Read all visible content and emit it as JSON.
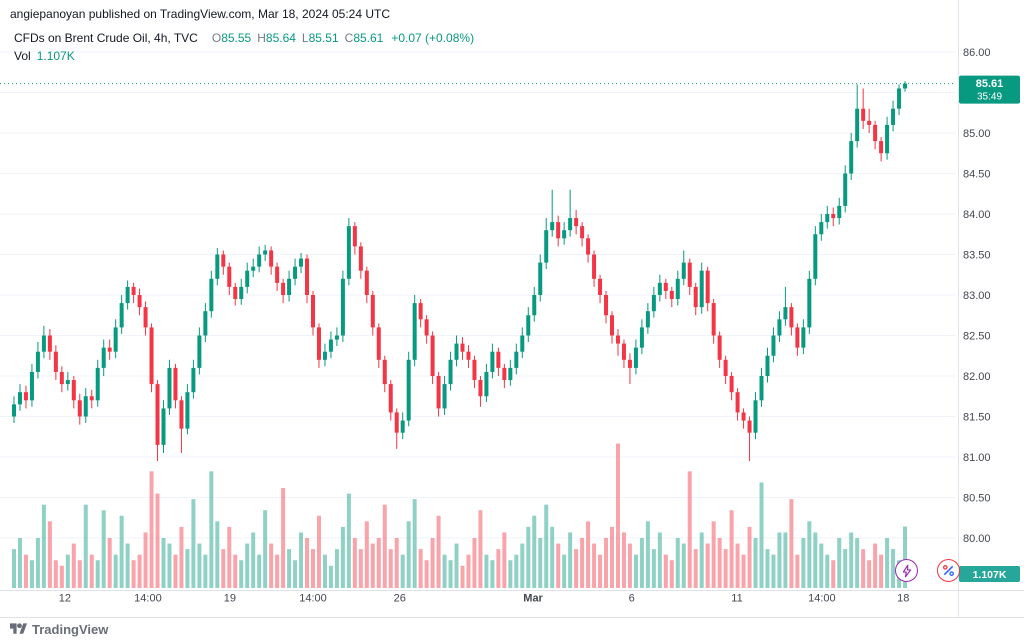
{
  "attribution": "angiepanoyan published on TradingView.com, Mar 18, 2024 05:24 UTC",
  "legend": {
    "title": "CFDs on Brent Crude Oil, 4h, TVC",
    "o_label": "O",
    "o_value": "85.55",
    "h_label": "H",
    "h_value": "85.64",
    "l_label": "L",
    "l_value": "85.51",
    "c_label": "C",
    "c_value": "85.61",
    "change": "+0.07 (+0.08%)",
    "vol_label": "Vol",
    "vol_value": "1.107K"
  },
  "price_axis": {
    "ticks": [
      86.0,
      85.5,
      85.0,
      84.5,
      84.0,
      83.5,
      83.0,
      82.5,
      82.0,
      81.5,
      81.0,
      80.5,
      80.0
    ],
    "current_price": "85.61",
    "countdown": "35:49",
    "volume_badge": "1.107K"
  },
  "time_axis": {
    "labels": [
      {
        "label": "12",
        "i": 8.5
      },
      {
        "label": "14:00",
        "i": 22.4
      },
      {
        "label": "19",
        "i": 36.1
      },
      {
        "label": "14:00",
        "i": 50.0
      },
      {
        "label": "26",
        "i": 64.5
      },
      {
        "label": "Mar",
        "i": 86.8,
        "bold": true
      },
      {
        "label": "6",
        "i": 103.3
      },
      {
        "label": "11",
        "i": 120.9
      },
      {
        "label": "14:00",
        "i": 135.1
      },
      {
        "label": "18",
        "i": 148.7
      }
    ]
  },
  "footer": {
    "brand": "TradingView"
  },
  "colors": {
    "up": "#089981",
    "down": "#f23645",
    "vol_up": "rgba(8,153,129,0.45)",
    "vol_down": "rgba(242,54,69,0.45)",
    "axis_text": "#434651",
    "grid": "#f0f3fa",
    "separator": "#e0e3eb",
    "badge_price_bg": "#089981",
    "badge_vol_bg": "#27a69a",
    "boost_icon": "#9c27b0",
    "reaction_ring": "#f23645",
    "reaction_glyph": "#2962ff"
  },
  "chart_data": {
    "type": "candlestick",
    "title": "CFDs on Brent Crude Oil",
    "interval": "4h",
    "exchange": "TVC",
    "last": {
      "open": 85.55,
      "high": 85.64,
      "low": 85.51,
      "close": 85.61,
      "change": "+0.07 (+0.08%)",
      "volume": "1.107K"
    },
    "ylim": [
      79.85,
      86.35
    ],
    "y_ticks_step": 0.5,
    "x_visible_labels": [
      "12",
      "14:00",
      "19",
      "14:00",
      "26",
      "Mar",
      "6",
      "11",
      "14:00",
      "18"
    ],
    "volume_unit": "K",
    "ohlc": [
      [
        81.5,
        81.75,
        81.42,
        81.65
      ],
      [
        81.65,
        81.9,
        81.57,
        81.8
      ],
      [
        81.8,
        81.88,
        81.6,
        81.7
      ],
      [
        81.7,
        82.15,
        81.62,
        82.05
      ],
      [
        82.05,
        82.42,
        81.97,
        82.3
      ],
      [
        82.3,
        82.62,
        82.22,
        82.5
      ],
      [
        82.5,
        82.58,
        82.2,
        82.3
      ],
      [
        82.3,
        82.38,
        81.95,
        82.05
      ],
      [
        82.05,
        82.12,
        81.8,
        81.9
      ],
      [
        81.9,
        82.05,
        81.82,
        81.95
      ],
      [
        81.95,
        82.0,
        81.6,
        81.7
      ],
      [
        81.7,
        81.78,
        81.4,
        81.5
      ],
      [
        81.5,
        81.85,
        81.42,
        81.75
      ],
      [
        81.75,
        81.83,
        81.6,
        81.7
      ],
      [
        81.7,
        82.2,
        81.62,
        82.1
      ],
      [
        82.1,
        82.45,
        82.0,
        82.35
      ],
      [
        82.35,
        82.45,
        82.2,
        82.3
      ],
      [
        82.3,
        82.7,
        82.22,
        82.6
      ],
      [
        82.6,
        83.0,
        82.52,
        82.9
      ],
      [
        82.9,
        83.18,
        82.82,
        83.1
      ],
      [
        83.1,
        83.15,
        82.9,
        83.0
      ],
      [
        83.0,
        83.08,
        82.75,
        82.85
      ],
      [
        82.85,
        82.92,
        82.5,
        82.6
      ],
      [
        82.6,
        82.65,
        81.8,
        81.9
      ],
      [
        81.9,
        81.95,
        80.95,
        81.15
      ],
      [
        81.15,
        81.7,
        81.05,
        81.6
      ],
      [
        81.6,
        82.2,
        81.52,
        82.1
      ],
      [
        82.1,
        82.15,
        81.6,
        81.7
      ],
      [
        81.7,
        81.75,
        81.05,
        81.35
      ],
      [
        81.35,
        81.9,
        81.28,
        81.8
      ],
      [
        81.8,
        82.2,
        81.72,
        82.1
      ],
      [
        82.1,
        82.6,
        82.02,
        82.5
      ],
      [
        82.5,
        82.9,
        82.42,
        82.8
      ],
      [
        82.8,
        83.3,
        82.72,
        83.2
      ],
      [
        83.2,
        83.58,
        83.12,
        83.5
      ],
      [
        83.5,
        83.55,
        83.25,
        83.35
      ],
      [
        83.35,
        83.4,
        83.0,
        83.1
      ],
      [
        83.1,
        83.15,
        82.87,
        82.95
      ],
      [
        82.95,
        83.2,
        82.88,
        83.1
      ],
      [
        83.1,
        83.4,
        83.02,
        83.3
      ],
      [
        83.3,
        83.45,
        83.22,
        83.35
      ],
      [
        83.35,
        83.6,
        83.28,
        83.5
      ],
      [
        83.5,
        83.62,
        83.42,
        83.55
      ],
      [
        83.55,
        83.6,
        83.25,
        83.35
      ],
      [
        83.35,
        83.4,
        83.05,
        83.15
      ],
      [
        83.15,
        83.2,
        82.9,
        83.0
      ],
      [
        83.0,
        83.3,
        82.92,
        83.2
      ],
      [
        83.2,
        83.45,
        83.12,
        83.35
      ],
      [
        83.35,
        83.52,
        83.27,
        83.45
      ],
      [
        83.45,
        83.5,
        82.9,
        83.0
      ],
      [
        83.0,
        83.05,
        82.5,
        82.6
      ],
      [
        82.6,
        82.65,
        82.1,
        82.2
      ],
      [
        82.2,
        82.4,
        82.12,
        82.3
      ],
      [
        82.3,
        82.55,
        82.22,
        82.45
      ],
      [
        82.45,
        82.6,
        82.37,
        82.5
      ],
      [
        82.5,
        83.3,
        82.42,
        83.2
      ],
      [
        83.2,
        83.95,
        83.12,
        83.85
      ],
      [
        83.85,
        83.9,
        83.5,
        83.6
      ],
      [
        83.6,
        83.65,
        83.2,
        83.3
      ],
      [
        83.3,
        83.35,
        82.9,
        83.0
      ],
      [
        83.0,
        83.05,
        82.5,
        82.6
      ],
      [
        82.6,
        82.65,
        82.1,
        82.2
      ],
      [
        82.2,
        82.25,
        81.8,
        81.9
      ],
      [
        81.9,
        81.95,
        81.45,
        81.55
      ],
      [
        81.55,
        81.6,
        81.1,
        81.3
      ],
      [
        81.3,
        81.55,
        81.22,
        81.45
      ],
      [
        81.45,
        82.3,
        81.38,
        82.2
      ],
      [
        82.2,
        83.0,
        82.12,
        82.9
      ],
      [
        82.9,
        82.95,
        82.6,
        82.7
      ],
      [
        82.7,
        82.75,
        82.4,
        82.5
      ],
      [
        82.5,
        82.55,
        81.9,
        82.0
      ],
      [
        82.0,
        82.05,
        81.5,
        81.6
      ],
      [
        81.6,
        82.0,
        81.52,
        81.9
      ],
      [
        81.9,
        82.3,
        81.82,
        82.2
      ],
      [
        82.2,
        82.5,
        82.12,
        82.4
      ],
      [
        82.4,
        82.48,
        82.2,
        82.3
      ],
      [
        82.3,
        82.38,
        82.1,
        82.2
      ],
      [
        82.2,
        82.25,
        81.85,
        81.95
      ],
      [
        81.95,
        82.0,
        81.62,
        81.75
      ],
      [
        81.75,
        82.15,
        81.68,
        82.05
      ],
      [
        82.05,
        82.4,
        81.97,
        82.3
      ],
      [
        82.3,
        82.35,
        82.0,
        82.1
      ],
      [
        82.1,
        82.15,
        81.85,
        81.95
      ],
      [
        81.95,
        82.2,
        81.88,
        82.1
      ],
      [
        82.1,
        82.4,
        82.02,
        82.3
      ],
      [
        82.3,
        82.6,
        82.22,
        82.5
      ],
      [
        82.5,
        82.85,
        82.42,
        82.75
      ],
      [
        82.75,
        83.1,
        82.67,
        83.0
      ],
      [
        83.0,
        83.5,
        82.92,
        83.4
      ],
      [
        83.4,
        83.95,
        83.32,
        83.8
      ],
      [
        83.8,
        84.3,
        83.72,
        83.9
      ],
      [
        83.9,
        83.98,
        83.6,
        83.7
      ],
      [
        83.7,
        83.9,
        83.62,
        83.8
      ],
      [
        83.8,
        84.3,
        83.72,
        83.95
      ],
      [
        83.95,
        84.05,
        83.75,
        83.85
      ],
      [
        83.85,
        83.9,
        83.6,
        83.7
      ],
      [
        83.7,
        83.75,
        83.4,
        83.5
      ],
      [
        83.5,
        83.55,
        83.1,
        83.2
      ],
      [
        83.2,
        83.25,
        82.9,
        83.0
      ],
      [
        83.0,
        83.05,
        82.65,
        82.75
      ],
      [
        82.75,
        82.8,
        82.4,
        82.5
      ],
      [
        82.5,
        82.58,
        82.25,
        82.4
      ],
      [
        82.4,
        82.45,
        82.1,
        82.2
      ],
      [
        82.2,
        82.28,
        81.9,
        82.1
      ],
      [
        82.1,
        82.45,
        82.02,
        82.35
      ],
      [
        82.35,
        82.7,
        82.27,
        82.6
      ],
      [
        82.6,
        82.9,
        82.52,
        82.8
      ],
      [
        82.8,
        83.1,
        82.72,
        83.0
      ],
      [
        83.0,
        83.25,
        82.92,
        83.15
      ],
      [
        83.15,
        83.2,
        82.95,
        83.05
      ],
      [
        83.05,
        83.1,
        82.85,
        82.95
      ],
      [
        82.95,
        83.3,
        82.87,
        83.2
      ],
      [
        83.2,
        83.55,
        83.12,
        83.4
      ],
      [
        83.4,
        83.45,
        83.0,
        83.1
      ],
      [
        83.1,
        83.15,
        82.75,
        82.85
      ],
      [
        82.85,
        83.4,
        82.77,
        83.3
      ],
      [
        83.3,
        83.35,
        82.8,
        82.9
      ],
      [
        82.9,
        82.95,
        82.4,
        82.5
      ],
      [
        82.5,
        82.55,
        82.1,
        82.2
      ],
      [
        82.2,
        82.25,
        81.9,
        82.0
      ],
      [
        82.0,
        82.05,
        81.7,
        81.8
      ],
      [
        81.8,
        81.85,
        81.45,
        81.55
      ],
      [
        81.55,
        81.6,
        81.35,
        81.45
      ],
      [
        81.45,
        81.5,
        80.95,
        81.3
      ],
      [
        81.3,
        81.8,
        81.22,
        81.7
      ],
      [
        81.7,
        82.1,
        81.62,
        82.0
      ],
      [
        82.0,
        82.35,
        81.92,
        82.25
      ],
      [
        82.25,
        82.6,
        82.17,
        82.5
      ],
      [
        82.5,
        82.8,
        82.42,
        82.7
      ],
      [
        82.7,
        83.1,
        82.62,
        82.85
      ],
      [
        82.85,
        82.9,
        82.5,
        82.6
      ],
      [
        82.6,
        82.65,
        82.25,
        82.35
      ],
      [
        82.35,
        82.7,
        82.27,
        82.6
      ],
      [
        82.6,
        83.3,
        82.52,
        83.2
      ],
      [
        83.2,
        83.85,
        83.12,
        83.75
      ],
      [
        83.75,
        84.0,
        83.67,
        83.9
      ],
      [
        83.9,
        84.1,
        83.82,
        84.0
      ],
      [
        84.0,
        84.08,
        83.85,
        83.95
      ],
      [
        83.95,
        84.2,
        83.87,
        84.1
      ],
      [
        84.1,
        84.6,
        84.02,
        84.5
      ],
      [
        84.5,
        85.0,
        84.42,
        84.9
      ],
      [
        84.9,
        85.6,
        84.82,
        85.3
      ],
      [
        85.3,
        85.55,
        85.05,
        85.15
      ],
      [
        85.15,
        85.3,
        85.0,
        85.1
      ],
      [
        85.1,
        85.15,
        84.8,
        84.9
      ],
      [
        84.9,
        84.95,
        84.65,
        84.75
      ],
      [
        84.75,
        85.2,
        84.67,
        85.1
      ],
      [
        85.1,
        85.4,
        85.02,
        85.3
      ],
      [
        85.3,
        85.6,
        85.22,
        85.55
      ],
      [
        85.55,
        85.64,
        85.51,
        85.61
      ]
    ],
    "volume": [
      0.7,
      0.9,
      0.6,
      0.5,
      0.9,
      1.5,
      1.2,
      0.5,
      0.4,
      0.6,
      0.8,
      0.5,
      1.5,
      0.6,
      0.5,
      1.4,
      0.9,
      0.6,
      1.3,
      0.8,
      0.5,
      0.6,
      1.0,
      2.1,
      1.7,
      0.9,
      0.8,
      0.6,
      1.1,
      0.7,
      1.6,
      0.8,
      0.6,
      2.1,
      1.2,
      0.7,
      1.1,
      0.6,
      0.5,
      0.8,
      1.0,
      0.6,
      1.4,
      0.8,
      0.6,
      1.8,
      0.7,
      0.5,
      1.0,
      0.9,
      0.7,
      1.3,
      0.6,
      0.4,
      0.7,
      1.1,
      1.7,
      0.9,
      0.7,
      1.2,
      0.8,
      0.9,
      1.5,
      0.7,
      0.9,
      0.6,
      1.2,
      1.6,
      0.7,
      0.5,
      0.9,
      1.3,
      0.6,
      0.5,
      0.8,
      0.4,
      0.6,
      0.9,
      1.4,
      0.6,
      0.5,
      0.7,
      1.0,
      0.5,
      0.6,
      0.8,
      1.1,
      1.3,
      0.9,
      1.5,
      1.1,
      0.8,
      0.6,
      1.0,
      0.7,
      0.9,
      1.2,
      0.8,
      0.6,
      0.9,
      1.1,
      2.6,
      1.0,
      0.8,
      0.6,
      0.9,
      1.2,
      0.7,
      1.0,
      0.6,
      0.5,
      0.9,
      0.8,
      2.1,
      0.7,
      1.0,
      0.8,
      1.2,
      0.9,
      0.7,
      1.4,
      0.8,
      0.6,
      1.1,
      0.9,
      1.9,
      0.7,
      0.6,
      1.0,
      1.0,
      1.6,
      0.6,
      0.9,
      1.2,
      1.0,
      0.8,
      0.6,
      0.5,
      0.9,
      0.7,
      1.0,
      0.9,
      0.7,
      0.5,
      0.8,
      0.6,
      0.9,
      0.7,
      0.5,
      1.107
    ]
  }
}
